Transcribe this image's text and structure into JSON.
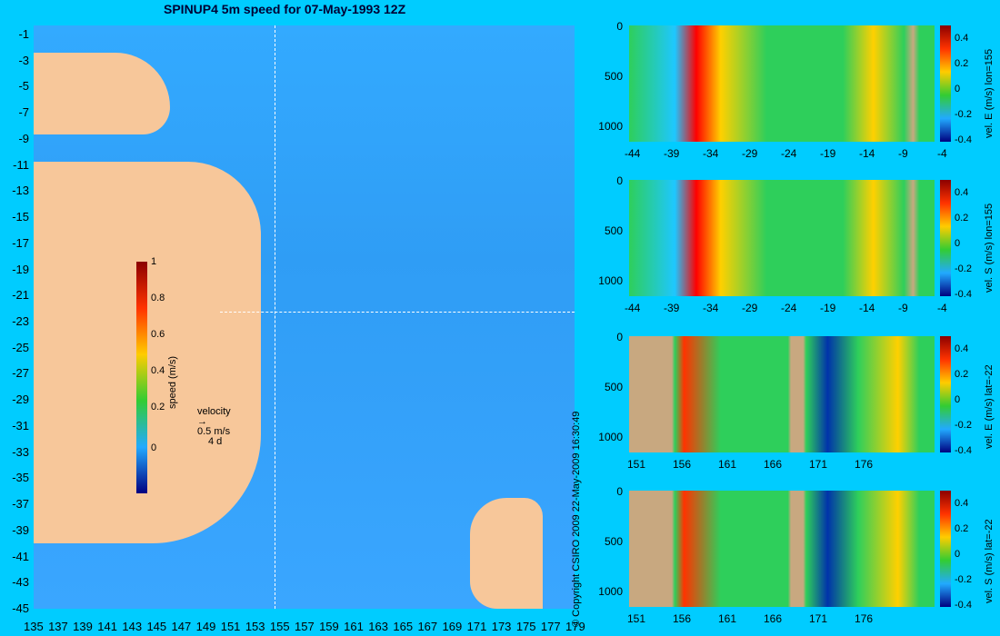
{
  "title": "SPINUP4 5m speed for 07-May-1993 12Z",
  "copyright": "© Copyright CSIRO 2009   22-May-2009 16:30:49",
  "map": {
    "y_ticks": [
      "-1",
      "-3",
      "-5",
      "-7",
      "-9",
      "-11",
      "-13",
      "-15",
      "-17",
      "-19",
      "-21",
      "-23",
      "-25",
      "-27",
      "-29",
      "-31",
      "-33",
      "-35",
      "-37",
      "-39",
      "-41",
      "-43",
      "-45"
    ],
    "x_ticks": [
      "135",
      "137",
      "139",
      "141",
      "143",
      "145",
      "147",
      "149",
      "151",
      "153",
      "155",
      "157",
      "159",
      "161",
      "163",
      "165",
      "167",
      "169",
      "171",
      "173",
      "175",
      "177",
      "179"
    ],
    "colorbar": {
      "label": "speed (m/s)",
      "ticks": [
        "1",
        "0.8",
        "0.6",
        "0.4",
        "0.2",
        "0"
      ]
    },
    "velocity_legend": {
      "label": "velocity",
      "speed": "0.5 m/s",
      "time": "4 d"
    }
  },
  "chart_data": [
    {
      "type": "heatmap",
      "title": "vel. E (m/s) lon=155",
      "x_ticks": [
        "-44",
        "-39",
        "-34",
        "-29",
        "-24",
        "-19",
        "-14",
        "-9",
        "-4"
      ],
      "y_ticks": [
        "0",
        "500",
        "1000"
      ],
      "colorbar_ticks": [
        "0.4",
        "0.2",
        "0",
        "-0.2",
        "-0.4"
      ]
    },
    {
      "type": "heatmap",
      "title": "vel. S (m/s) lon=155",
      "x_ticks": [
        "-44",
        "-39",
        "-34",
        "-29",
        "-24",
        "-19",
        "-14",
        "-9",
        "-4"
      ],
      "y_ticks": [
        "0",
        "500",
        "1000"
      ],
      "colorbar_ticks": [
        "0.4",
        "0.2",
        "0",
        "-0.2",
        "-0.4"
      ]
    },
    {
      "type": "heatmap",
      "title": "vel. E (m/s) lat=-22",
      "x_ticks": [
        "151",
        "156",
        "161",
        "166",
        "171",
        "176"
      ],
      "y_ticks": [
        "0",
        "500",
        "1000"
      ],
      "colorbar_ticks": [
        "0.4",
        "0.2",
        "0",
        "-0.2",
        "-0.4"
      ]
    },
    {
      "type": "heatmap",
      "title": "vel. S (m/s) lat=-22",
      "x_ticks": [
        "151",
        "156",
        "161",
        "166",
        "171",
        "176"
      ],
      "y_ticks": [
        "0",
        "500",
        "1000"
      ],
      "colorbar_ticks": [
        "0.4",
        "0.2",
        "0",
        "-0.2",
        "-0.4"
      ]
    }
  ]
}
